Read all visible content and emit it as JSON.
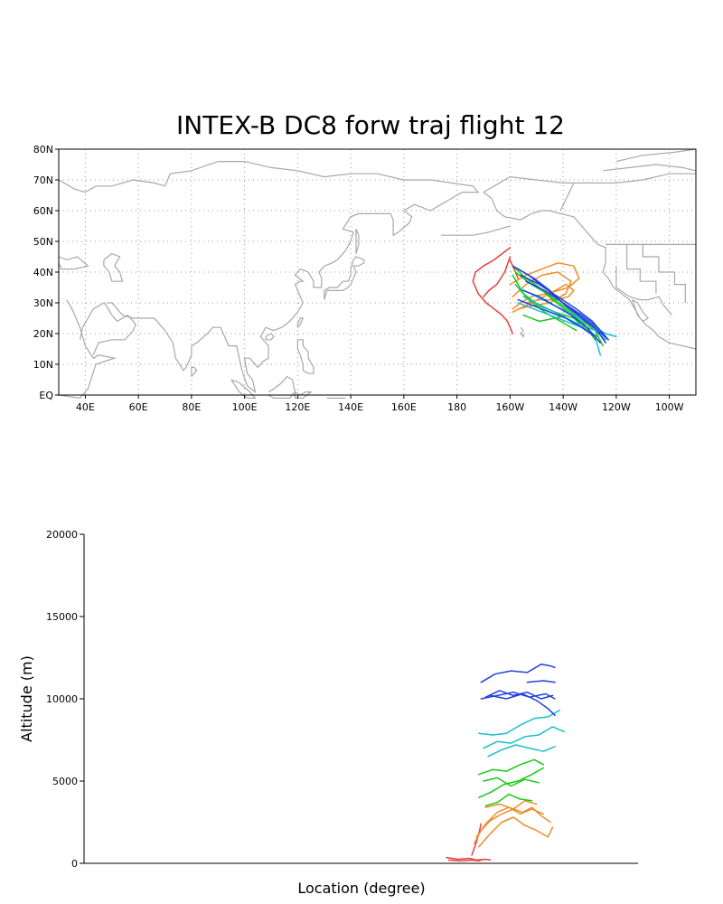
{
  "chart_data": [
    {
      "type": "line",
      "title": "INTEX-B DC8 forw traj flight 12",
      "x_ticks": [
        "40E",
        "60E",
        "80E",
        "100E",
        "120E",
        "140E",
        "160E",
        "180",
        "160W",
        "140W",
        "120W",
        "100W"
      ],
      "x_tick_values": [
        40,
        60,
        80,
        100,
        120,
        140,
        160,
        180,
        200,
        220,
        240,
        260
      ],
      "y_ticks": [
        "EQ",
        "10N",
        "20N",
        "30N",
        "40N",
        "50N",
        "60N",
        "70N",
        "80N"
      ],
      "y_tick_values": [
        0,
        10,
        20,
        30,
        40,
        50,
        60,
        70,
        80
      ],
      "xlim": [
        30,
        270
      ],
      "ylim": [
        0,
        80
      ],
      "grid": true,
      "colors": {
        "red": "#e8403c",
        "orange": "#f08c28",
        "green": "#18c818",
        "cyan": "#18c0c8",
        "blue": "#2040e0",
        "coast": "#a8a8a8"
      },
      "series": [
        {
          "color": "red",
          "x": [
            200,
            197,
            194,
            190,
            187,
            186,
            188,
            191,
            194,
            197,
            199,
            200,
            201
          ],
          "y": [
            48,
            46,
            44,
            42,
            40,
            37,
            33,
            30,
            28,
            26,
            24,
            22,
            20
          ]
        },
        {
          "color": "red",
          "x": [
            200,
            198,
            195,
            192,
            190,
            192
          ],
          "y": [
            45,
            40,
            36,
            34,
            32,
            34
          ]
        },
        {
          "color": "red",
          "x": [
            200,
            201,
            202,
            203
          ],
          "y": [
            44,
            42,
            40,
            38
          ]
        },
        {
          "color": "orange",
          "x": [
            200,
            206,
            212,
            218,
            224,
            226,
            222,
            214,
            208,
            204,
            201
          ],
          "y": [
            36,
            39,
            41,
            43,
            42,
            38,
            35,
            33,
            32,
            30,
            28
          ]
        },
        {
          "color": "orange",
          "x": [
            201,
            206,
            212,
            218,
            223,
            221,
            215,
            208,
            203
          ],
          "y": [
            32,
            36,
            39,
            40,
            37,
            33,
            30,
            29,
            28
          ]
        },
        {
          "color": "orange",
          "x": [
            201,
            208,
            215,
            221,
            224,
            222,
            217,
            211,
            206
          ],
          "y": [
            27,
            30,
            33,
            36,
            34,
            32,
            31,
            31,
            30
          ]
        },
        {
          "color": "green",
          "x": [
            201,
            206,
            211,
            216,
            222,
            228,
            232
          ],
          "y": [
            42,
            38,
            35,
            31,
            27,
            23,
            18
          ]
        },
        {
          "color": "green",
          "x": [
            202,
            208,
            214,
            220,
            226,
            232,
            235
          ],
          "y": [
            40,
            36,
            33,
            29,
            25,
            21,
            16
          ]
        },
        {
          "color": "green",
          "x": [
            201,
            205,
            211,
            217,
            224,
            229,
            233
          ],
          "y": [
            39,
            33,
            29,
            27,
            25,
            21,
            19
          ]
        },
        {
          "color": "green",
          "x": [
            202,
            207,
            213,
            219,
            225
          ],
          "y": [
            36,
            31,
            27,
            24,
            21
          ]
        },
        {
          "color": "green",
          "x": [
            205,
            211,
            217,
            221
          ],
          "y": [
            26,
            24,
            25,
            26
          ]
        },
        {
          "color": "cyan",
          "x": [
            203,
            210,
            217,
            224,
            230,
            236,
            240
          ],
          "y": [
            35,
            32,
            29,
            26,
            23,
            20,
            19
          ]
        },
        {
          "color": "cyan",
          "x": [
            205,
            212,
            219,
            226,
            232,
            236
          ],
          "y": [
            32,
            29,
            26,
            23,
            21,
            18
          ]
        },
        {
          "color": "cyan",
          "x": [
            203,
            209,
            215,
            221,
            227,
            232,
            234
          ],
          "y": [
            30,
            28,
            26,
            24,
            22,
            19,
            13
          ]
        },
        {
          "color": "blue",
          "x": [
            201,
            207,
            213,
            220,
            226,
            232,
            236
          ],
          "y": [
            42,
            39,
            35,
            30,
            26,
            22,
            17
          ]
        },
        {
          "color": "blue",
          "x": [
            203,
            209,
            215,
            221,
            227,
            233,
            237
          ],
          "y": [
            41,
            38,
            34,
            29,
            25,
            21,
            18
          ]
        },
        {
          "color": "blue",
          "x": [
            204,
            211,
            218,
            225,
            231,
            236
          ],
          "y": [
            39,
            36,
            32,
            28,
            24,
            19
          ]
        },
        {
          "color": "blue",
          "x": [
            206,
            213,
            220,
            227,
            233,
            237
          ],
          "y": [
            37,
            34,
            30,
            26,
            22,
            18
          ]
        },
        {
          "color": "blue",
          "x": [
            205,
            211,
            217,
            223,
            229,
            234
          ],
          "y": [
            34,
            32,
            29,
            26,
            22,
            17
          ]
        },
        {
          "color": "blue",
          "x": [
            203,
            209,
            215,
            221,
            227,
            232
          ],
          "y": [
            31,
            29,
            27,
            25,
            22,
            19
          ]
        }
      ]
    },
    {
      "type": "line",
      "xlabel": "Location (degree)",
      "ylabel": "Altitude (m)",
      "y_ticks": [
        "0",
        "5000",
        "10000",
        "15000",
        "20000"
      ],
      "y_tick_values": [
        0,
        5000,
        10000,
        15000,
        20000
      ],
      "ylim": [
        0,
        20000
      ],
      "xlim": [
        30,
        270
      ],
      "grid": false,
      "series": [
        {
          "color": "red",
          "x": [
            187,
            192,
            197,
            200,
            204,
            206
          ],
          "y": [
            350,
            250,
            300,
            200,
            250,
            200
          ]
        },
        {
          "color": "red",
          "x": [
            188,
            193,
            198,
            201,
            203
          ],
          "y": [
            200,
            150,
            200,
            150,
            250
          ]
        },
        {
          "color": "red",
          "x": [
            198,
            199,
            200,
            201,
            202
          ],
          "y": [
            500,
            900,
            1300,
            1800,
            2400
          ]
        },
        {
          "color": "orange",
          "x": [
            199,
            202,
            206,
            211,
            216,
            220,
            224,
            228,
            232
          ],
          "y": [
            1200,
            2000,
            2600,
            3000,
            3300,
            3100,
            3400,
            2900,
            2500
          ]
        },
        {
          "color": "orange",
          "x": [
            200,
            204,
            209,
            214,
            219,
            224,
            229
          ],
          "y": [
            1600,
            2400,
            3100,
            3400,
            3000,
            3300,
            3000
          ]
        },
        {
          "color": "orange",
          "x": [
            201,
            206,
            211,
            216,
            221,
            226,
            231,
            233
          ],
          "y": [
            1000,
            1800,
            2500,
            2800,
            2300,
            2000,
            1600,
            2200
          ]
        },
        {
          "color": "orange",
          "x": [
            204,
            210,
            216,
            221,
            226
          ],
          "y": [
            3400,
            3600,
            3300,
            3800,
            3600
          ]
        },
        {
          "color": "green",
          "x": [
            201,
            206,
            212,
            218,
            224,
            229
          ],
          "y": [
            4000,
            4300,
            4800,
            5000,
            5400,
            5800
          ]
        },
        {
          "color": "green",
          "x": [
            201,
            207,
            213,
            219,
            225,
            229
          ],
          "y": [
            5400,
            5700,
            5600,
            6000,
            6300,
            6000
          ]
        },
        {
          "color": "green",
          "x": [
            203,
            209,
            215,
            221,
            227
          ],
          "y": [
            5000,
            5200,
            4700,
            5100,
            4900
          ]
        },
        {
          "color": "green",
          "x": [
            204,
            209,
            214,
            219,
            224
          ],
          "y": [
            3500,
            3700,
            4200,
            3900,
            3800
          ]
        },
        {
          "color": "cyan",
          "x": [
            201,
            207,
            213,
            219,
            225,
            231,
            236
          ],
          "y": [
            7900,
            7800,
            7900,
            8400,
            8800,
            8900,
            9300
          ]
        },
        {
          "color": "cyan",
          "x": [
            203,
            209,
            215,
            221,
            227,
            233,
            238
          ],
          "y": [
            7000,
            7400,
            7300,
            7700,
            7800,
            8300,
            8000
          ]
        },
        {
          "color": "cyan",
          "x": [
            205,
            211,
            217,
            223,
            229,
            234
          ],
          "y": [
            6500,
            6900,
            7200,
            7000,
            6800,
            7100
          ]
        },
        {
          "color": "blue",
          "x": [
            202,
            208,
            215,
            222,
            228,
            232,
            234
          ],
          "y": [
            11000,
            11500,
            11700,
            11600,
            12100,
            12000,
            11900
          ]
        },
        {
          "color": "blue",
          "x": [
            202,
            209,
            216,
            223,
            230,
            234
          ],
          "y": [
            10000,
            10200,
            10400,
            10100,
            10300,
            10000
          ]
        },
        {
          "color": "blue",
          "x": [
            204,
            210,
            216,
            222,
            228,
            233
          ],
          "y": [
            10100,
            10500,
            10200,
            10400,
            10000,
            10200
          ]
        },
        {
          "color": "blue",
          "x": [
            206,
            213,
            220,
            226,
            231,
            234
          ],
          "y": [
            10200,
            10000,
            10300,
            9900,
            9400,
            9000
          ]
        },
        {
          "color": "blue",
          "x": [
            222,
            229,
            234
          ],
          "y": [
            11000,
            11100,
            11000
          ]
        }
      ]
    }
  ]
}
